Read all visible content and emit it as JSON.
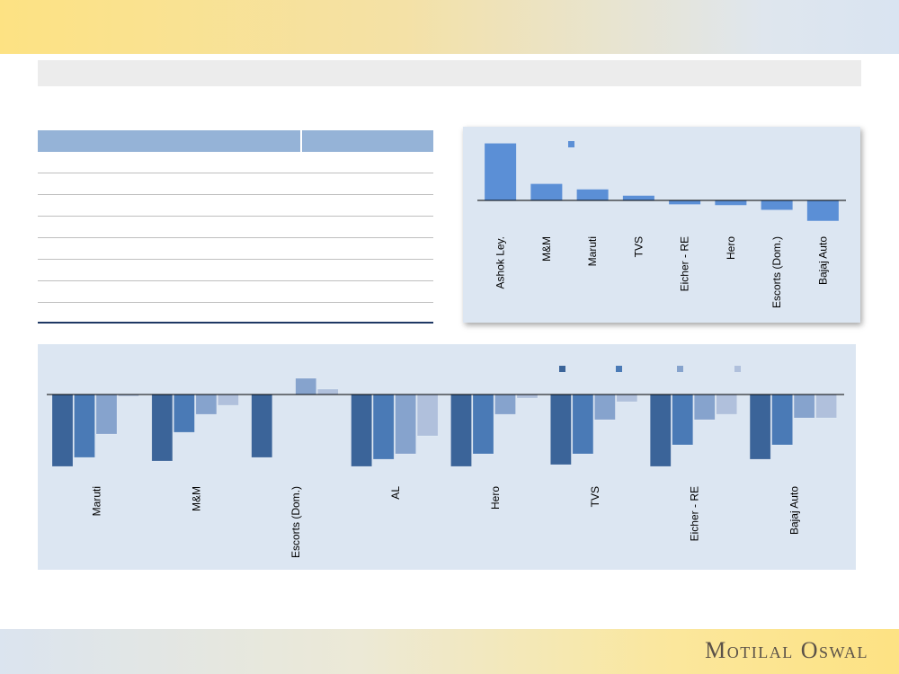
{
  "branding": {
    "logo": "Motilal Oswal"
  },
  "colors": {
    "top_bar": "#5b8fd6",
    "series": [
      "#3b6499",
      "#4a7ab6",
      "#86a3cd",
      "#b0c0dc"
    ],
    "panel_bg": "#dce6f2",
    "table_header": "#95b3d7"
  },
  "chart_data": [
    {
      "type": "bar",
      "categories": [
        "Ashok Ley.",
        "M&M",
        "Maruti",
        "TVS",
        "Eicher - RE",
        "Hero",
        "Escorts (Dom.)",
        "Bajaj Auto"
      ],
      "values": [
        14.5,
        4.2,
        2.8,
        1.2,
        -1.0,
        -1.2,
        -2.4,
        -5.2
      ],
      "ylim": [
        -7,
        16
      ],
      "legend": "top-center",
      "grid": false
    },
    {
      "type": "bar",
      "categories": [
        "Maruti",
        "M&M",
        "Escorts (Dom.)",
        "AL",
        "Hero",
        "TVS",
        "Eicher - RE",
        "Bajaj Auto"
      ],
      "series": [
        {
          "values": [
            -40,
            -37,
            -35,
            -40,
            -40,
            -39,
            -40,
            -36
          ]
        },
        {
          "values": [
            -35,
            -21,
            null,
            -36,
            -33,
            -33,
            -28,
            -28
          ]
        },
        {
          "values": [
            -22,
            -11,
            9,
            -33,
            -11,
            -14,
            -14,
            -13
          ]
        },
        {
          "values": [
            -1,
            -6,
            3,
            -23,
            -2,
            -4,
            -11,
            -13
          ]
        }
      ],
      "ylim": [
        -48,
        12
      ],
      "legend": "top-right",
      "grid": false
    }
  ]
}
